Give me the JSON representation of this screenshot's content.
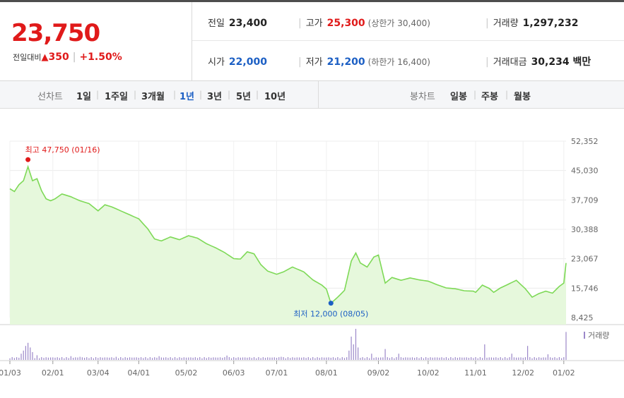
{
  "summary": {
    "price": "23,750",
    "change_label": "전일대비",
    "change_arrow": "▲",
    "change_amount": "350",
    "change_percent": "+1.50%",
    "prev_close_label": "전일",
    "prev_close": "23,400",
    "high_label": "고가",
    "high": "25,300",
    "upper_limit": "(상한가 30,400)",
    "volume_label": "거래량",
    "volume": "1,297,232",
    "open_label": "시가",
    "open": "22,000",
    "low_label": "저가",
    "low": "21,200",
    "lower_limit": "(하한가 16,400)",
    "value_label": "거래대금",
    "value": "30,234 백만"
  },
  "tabs": {
    "line_label": "선차트",
    "periods": [
      "1일",
      "1주일",
      "3개월",
      "1년",
      "3년",
      "5년",
      "10년"
    ],
    "active_period": "1년",
    "candle_label": "봉차트",
    "candle_periods": [
      "일봉",
      "주봉",
      "월봉"
    ]
  },
  "colors": {
    "up": "#e01a1a",
    "down": "#1c5fc4",
    "line": "#7ed957",
    "area": "#e6f8dc",
    "volume": "#9b87c9"
  },
  "chart_data": {
    "type": "area",
    "x_ticks": [
      "01/03",
      "02/01",
      "03/04",
      "04/01",
      "05/02",
      "06/03",
      "07/01",
      "08/01",
      "09/02",
      "10/02",
      "11/01",
      "12/02",
      "01/02"
    ],
    "x_tick_index": [
      0,
      19,
      39,
      57,
      78,
      99,
      118,
      140,
      163,
      185,
      206,
      227,
      245
    ],
    "y_ticks": [
      "52,352",
      "45,030",
      "37,709",
      "30,388",
      "23,067",
      "15,746",
      "8,425"
    ],
    "ylim": [
      8425,
      52352
    ],
    "grid": true,
    "legend": "top-right",
    "legend_label": "거래량",
    "max_label": "최고 47,750 (01/16)",
    "min_label": "최저 12,000 (08/05)",
    "max_point": {
      "index": 8,
      "value": 47750
    },
    "min_point": {
      "index": 142,
      "value": 12000
    },
    "price_anchors": [
      [
        0,
        40500
      ],
      [
        2,
        39800
      ],
      [
        4,
        41500
      ],
      [
        6,
        42500
      ],
      [
        8,
        46000
      ],
      [
        10,
        42500
      ],
      [
        12,
        43000
      ],
      [
        14,
        40000
      ],
      [
        16,
        38000
      ],
      [
        18,
        37500
      ],
      [
        20,
        38000
      ],
      [
        23,
        39200
      ],
      [
        27,
        38500
      ],
      [
        31,
        37500
      ],
      [
        35,
        36800
      ],
      [
        39,
        35000
      ],
      [
        42,
        36500
      ],
      [
        45,
        36000
      ],
      [
        49,
        35000
      ],
      [
        53,
        34000
      ],
      [
        57,
        33000
      ],
      [
        61,
        30500
      ],
      [
        64,
        28000
      ],
      [
        67,
        27500
      ],
      [
        71,
        28500
      ],
      [
        75,
        27800
      ],
      [
        79,
        28800
      ],
      [
        83,
        28200
      ],
      [
        87,
        26800
      ],
      [
        91,
        25800
      ],
      [
        95,
        24600
      ],
      [
        99,
        23100
      ],
      [
        102,
        23000
      ],
      [
        105,
        24800
      ],
      [
        108,
        24300
      ],
      [
        111,
        21600
      ],
      [
        114,
        20000
      ],
      [
        118,
        19200
      ],
      [
        121,
        19800
      ],
      [
        125,
        21000
      ],
      [
        130,
        19800
      ],
      [
        134,
        17800
      ],
      [
        138,
        16500
      ],
      [
        140,
        15500
      ],
      [
        142,
        12000
      ],
      [
        145,
        13500
      ],
      [
        148,
        15200
      ],
      [
        151,
        22500
      ],
      [
        153,
        24500
      ],
      [
        155,
        22000
      ],
      [
        158,
        21000
      ],
      [
        161,
        23500
      ],
      [
        163,
        24000
      ],
      [
        166,
        17000
      ],
      [
        169,
        18400
      ],
      [
        173,
        17700
      ],
      [
        177,
        18300
      ],
      [
        181,
        17800
      ],
      [
        185,
        17500
      ],
      [
        189,
        16600
      ],
      [
        193,
        15800
      ],
      [
        197,
        15600
      ],
      [
        201,
        15100
      ],
      [
        205,
        15000
      ],
      [
        206,
        14700
      ],
      [
        209,
        16500
      ],
      [
        212,
        15700
      ],
      [
        214,
        14700
      ],
      [
        217,
        15800
      ],
      [
        220,
        16600
      ],
      [
        224,
        17700
      ],
      [
        228,
        15600
      ],
      [
        231,
        13500
      ],
      [
        234,
        14400
      ],
      [
        237,
        15000
      ],
      [
        240,
        14500
      ],
      [
        243,
        16200
      ],
      [
        245,
        17000
      ],
      [
        246,
        22000
      ],
      [
        247,
        23750
      ]
    ],
    "volume_spikes": [
      [
        5,
        0.2
      ],
      [
        6,
        0.3
      ],
      [
        7,
        0.45
      ],
      [
        8,
        0.55
      ],
      [
        9,
        0.4
      ],
      [
        10,
        0.25
      ],
      [
        12,
        0.15
      ],
      [
        27,
        0.12
      ],
      [
        31,
        0.1
      ],
      [
        47,
        0.1
      ],
      [
        66,
        0.12
      ],
      [
        96,
        0.14
      ],
      [
        120,
        0.1
      ],
      [
        150,
        0.3
      ],
      [
        151,
        0.75
      ],
      [
        152,
        0.5
      ],
      [
        153,
        1.0
      ],
      [
        154,
        0.4
      ],
      [
        160,
        0.2
      ],
      [
        166,
        0.35
      ],
      [
        172,
        0.2
      ],
      [
        210,
        0.5
      ],
      [
        222,
        0.2
      ],
      [
        229,
        0.45
      ],
      [
        238,
        0.18
      ],
      [
        246,
        0.9
      ],
      [
        247,
        1.0
      ]
    ]
  }
}
